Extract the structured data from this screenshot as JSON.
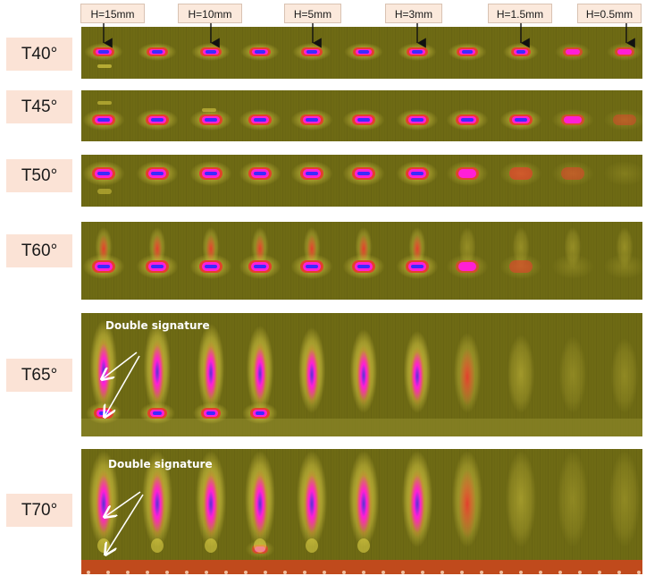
{
  "height_labels": [
    "H=15mm",
    "H=10mm",
    "H=5mm",
    "H=3mm",
    "H=1.5mm",
    "H=0.5mm"
  ],
  "panels": [
    {
      "label": "T40°",
      "annotation": ""
    },
    {
      "label": "T45°",
      "annotation": ""
    },
    {
      "label": "T50°",
      "annotation": ""
    },
    {
      "label": "T60°",
      "annotation": ""
    },
    {
      "label": "T65°",
      "annotation": "Double signature"
    },
    {
      "label": "T70°",
      "annotation": "Double signature"
    }
  ],
  "colors": {
    "background": "#6e6a14",
    "label_fill": "#fbe3d6",
    "hot_core": "#3a2cff",
    "magenta": "#ff1fd6",
    "red": "#e2402c",
    "yellow": "#e8d84a"
  }
}
